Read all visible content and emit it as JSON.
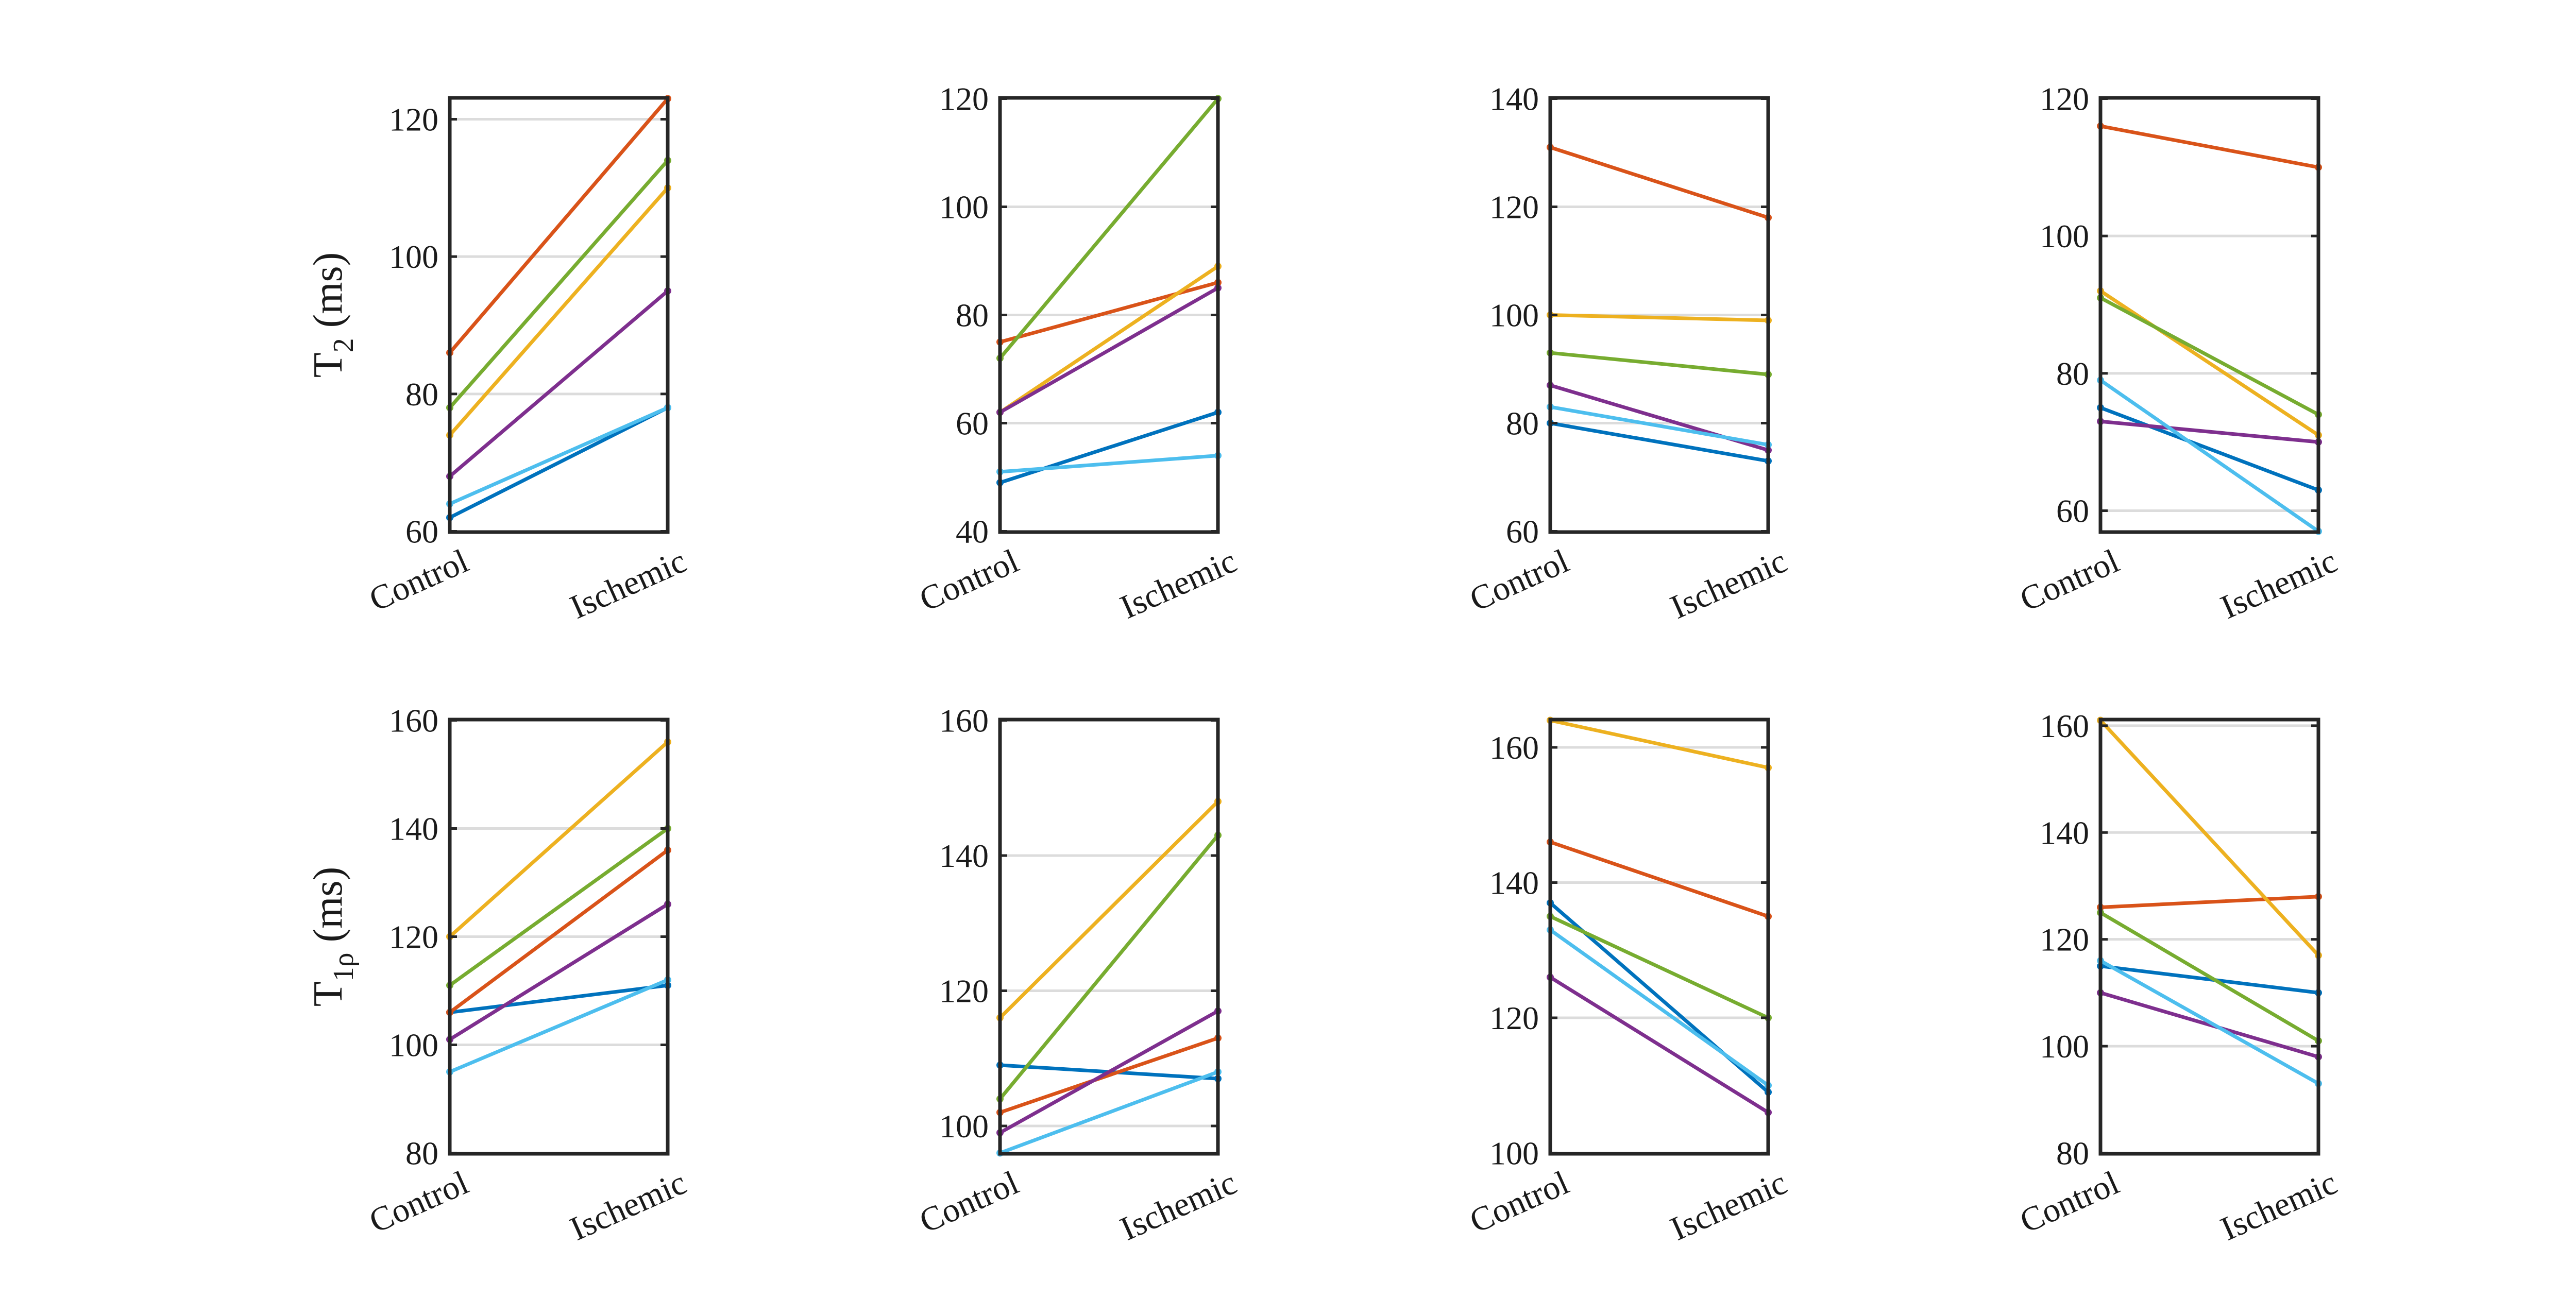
{
  "series_colors": {
    "s1": "#0072BD",
    "s2": "#D95319",
    "s3": "#EDB120",
    "s4": "#7E2F8E",
    "s5": "#77AC30",
    "s6": "#4DBEEE"
  },
  "chart_data": [
    {
      "type": "line",
      "row": 1,
      "col": 1,
      "categories": [
        "Control",
        "Ischemic"
      ],
      "ylabel": {
        "main": "T",
        "sub": "2",
        "rest": " (ms)"
      },
      "ylim": [
        60,
        123
      ],
      "yticks": [
        60,
        80,
        100,
        120
      ],
      "series": [
        {
          "name": "s1",
          "values": [
            62,
            78
          ]
        },
        {
          "name": "s2",
          "values": [
            86,
            123
          ]
        },
        {
          "name": "s3",
          "values": [
            74,
            110
          ]
        },
        {
          "name": "s4",
          "values": [
            68,
            95
          ]
        },
        {
          "name": "s5",
          "values": [
            78,
            114
          ]
        },
        {
          "name": "s6",
          "values": [
            64,
            78
          ]
        }
      ]
    },
    {
      "type": "line",
      "row": 1,
      "col": 2,
      "categories": [
        "Control",
        "Ischemic"
      ],
      "ylabel": null,
      "ylim": [
        40,
        120
      ],
      "yticks": [
        40,
        60,
        80,
        100,
        120
      ],
      "series": [
        {
          "name": "s1",
          "values": [
            49,
            62
          ]
        },
        {
          "name": "s2",
          "values": [
            75,
            86
          ]
        },
        {
          "name": "s3",
          "values": [
            62,
            89
          ]
        },
        {
          "name": "s4",
          "values": [
            62,
            85
          ]
        },
        {
          "name": "s5",
          "values": [
            72,
            120
          ]
        },
        {
          "name": "s6",
          "values": [
            51,
            54
          ]
        }
      ]
    },
    {
      "type": "line",
      "row": 1,
      "col": 3,
      "categories": [
        "Control",
        "Ischemic"
      ],
      "ylabel": null,
      "ylim": [
        60,
        140
      ],
      "yticks": [
        60,
        80,
        100,
        120,
        140
      ],
      "series": [
        {
          "name": "s1",
          "values": [
            80,
            73
          ]
        },
        {
          "name": "s2",
          "values": [
            131,
            118
          ]
        },
        {
          "name": "s3",
          "values": [
            100,
            99
          ]
        },
        {
          "name": "s4",
          "values": [
            87,
            75
          ]
        },
        {
          "name": "s5",
          "values": [
            93,
            89
          ]
        },
        {
          "name": "s6",
          "values": [
            83,
            76
          ]
        }
      ]
    },
    {
      "type": "line",
      "row": 1,
      "col": 4,
      "categories": [
        "Control",
        "Ischemic"
      ],
      "ylabel": null,
      "ylim": [
        57,
        120
      ],
      "yticks": [
        60,
        80,
        100,
        120
      ],
      "series": [
        {
          "name": "s1",
          "values": [
            75,
            63
          ]
        },
        {
          "name": "s2",
          "values": [
            116,
            110
          ]
        },
        {
          "name": "s3",
          "values": [
            92,
            71
          ]
        },
        {
          "name": "s4",
          "values": [
            73,
            70
          ]
        },
        {
          "name": "s5",
          "values": [
            91,
            74
          ]
        },
        {
          "name": "s6",
          "values": [
            79,
            57
          ]
        }
      ]
    },
    {
      "type": "line",
      "row": 2,
      "col": 1,
      "categories": [
        "Control",
        "Ischemic"
      ],
      "ylabel": {
        "main": "T",
        "sub": "1ρ",
        "rest": " (ms)"
      },
      "ylim": [
        80,
        160
      ],
      "yticks": [
        80,
        100,
        120,
        140,
        160
      ],
      "series": [
        {
          "name": "s1",
          "values": [
            106,
            111
          ]
        },
        {
          "name": "s2",
          "values": [
            106,
            136
          ]
        },
        {
          "name": "s3",
          "values": [
            120,
            156
          ]
        },
        {
          "name": "s4",
          "values": [
            101,
            126
          ]
        },
        {
          "name": "s5",
          "values": [
            111,
            140
          ]
        },
        {
          "name": "s6",
          "values": [
            95,
            112
          ]
        }
      ]
    },
    {
      "type": "line",
      "row": 2,
      "col": 2,
      "categories": [
        "Control",
        "Ischemic"
      ],
      "ylabel": null,
      "ylim": [
        96,
        160
      ],
      "yticks": [
        100,
        120,
        140,
        160
      ],
      "series": [
        {
          "name": "s1",
          "values": [
            109,
            107
          ]
        },
        {
          "name": "s2",
          "values": [
            102,
            113
          ]
        },
        {
          "name": "s3",
          "values": [
            116,
            148
          ]
        },
        {
          "name": "s4",
          "values": [
            99,
            117
          ]
        },
        {
          "name": "s5",
          "values": [
            104,
            143
          ]
        },
        {
          "name": "s6",
          "values": [
            96,
            108
          ]
        }
      ]
    },
    {
      "type": "line",
      "row": 2,
      "col": 3,
      "categories": [
        "Control",
        "Ischemic"
      ],
      "ylabel": null,
      "ylim": [
        100,
        164
      ],
      "yticks": [
        100,
        120,
        140,
        160
      ],
      "series": [
        {
          "name": "s1",
          "values": [
            137,
            109
          ]
        },
        {
          "name": "s2",
          "values": [
            146,
            135
          ]
        },
        {
          "name": "s3",
          "values": [
            164,
            157
          ]
        },
        {
          "name": "s4",
          "values": [
            126,
            106
          ]
        },
        {
          "name": "s5",
          "values": [
            135,
            120
          ]
        },
        {
          "name": "s6",
          "values": [
            133,
            110
          ]
        }
      ]
    },
    {
      "type": "line",
      "row": 2,
      "col": 4,
      "categories": [
        "Control",
        "Ischemic"
      ],
      "ylabel": null,
      "ylim": [
        80,
        161
      ],
      "yticks": [
        80,
        100,
        120,
        140,
        160
      ],
      "series": [
        {
          "name": "s1",
          "values": [
            115,
            110
          ]
        },
        {
          "name": "s2",
          "values": [
            126,
            128
          ]
        },
        {
          "name": "s3",
          "values": [
            161,
            117
          ]
        },
        {
          "name": "s4",
          "values": [
            110,
            98
          ]
        },
        {
          "name": "s5",
          "values": [
            125,
            101
          ]
        },
        {
          "name": "s6",
          "values": [
            116,
            93
          ]
        }
      ]
    }
  ]
}
